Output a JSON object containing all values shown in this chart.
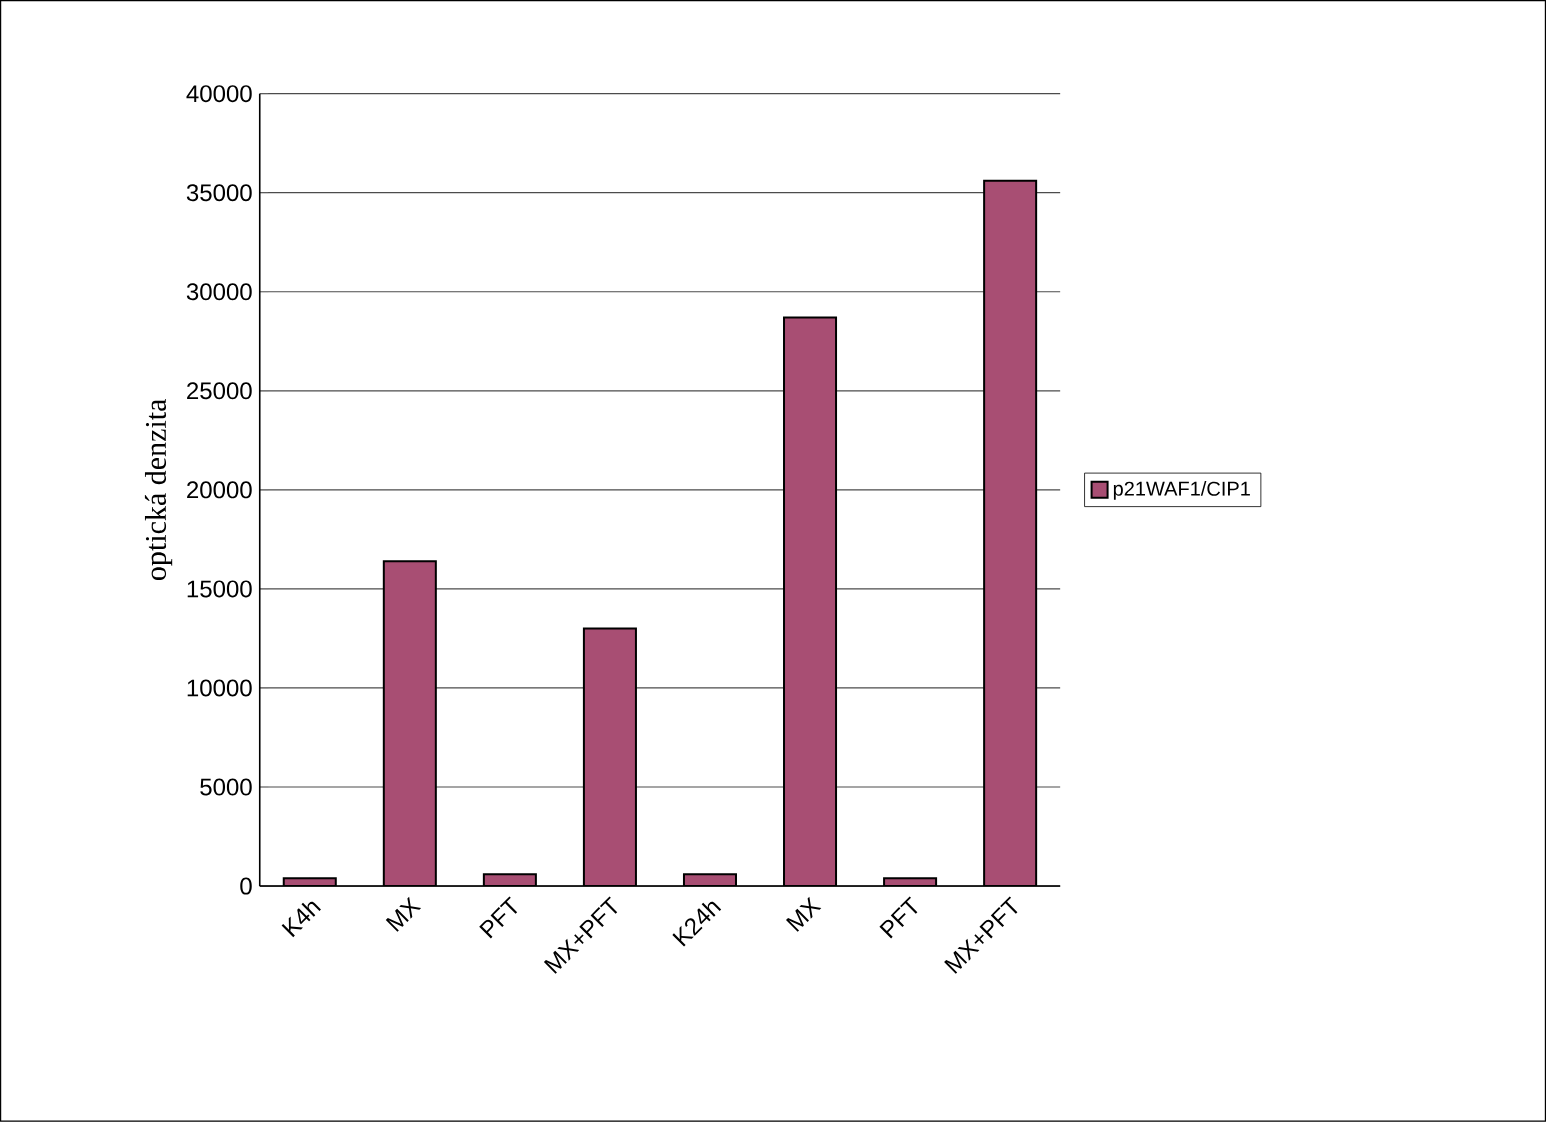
{
  "chart_data": {
    "type": "bar",
    "categories": [
      "K4h",
      "MX",
      "PFT",
      "MX+PFT",
      "K24h",
      "MX",
      "PFT",
      "MX+PFT"
    ],
    "series": [
      {
        "name": "p21WAF1/CIP1",
        "color": "#a84e73",
        "values": [
          400,
          16400,
          600,
          13000,
          600,
          28700,
          400,
          35600
        ]
      }
    ],
    "ylabel": "optická denzita",
    "ylim": [
      0,
      40000
    ],
    "yticks": [
      0,
      5000,
      10000,
      15000,
      20000,
      25000,
      30000,
      35000,
      40000
    ],
    "grid": "y",
    "legend": "right"
  }
}
